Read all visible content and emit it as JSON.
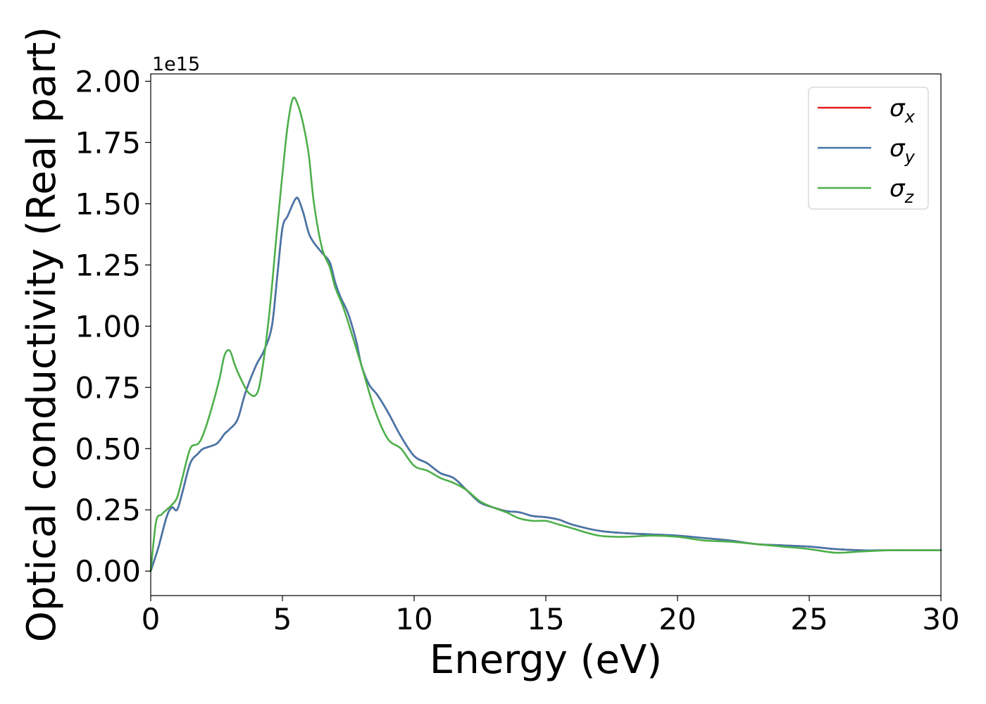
{
  "chart_data": {
    "type": "line",
    "xlabel": "Energy (eV)",
    "ylabel": "Optical conductivity (Real part)",
    "y_offset_text": "1e15",
    "y_scale": 1000000000000000.0,
    "xlim": [
      0,
      30
    ],
    "ylim": [
      -0.1,
      2.03
    ],
    "x_ticks": [
      0,
      5,
      10,
      15,
      20,
      25,
      30
    ],
    "x_tick_labels": [
      "0",
      "5",
      "10",
      "15",
      "20",
      "25",
      "30"
    ],
    "y_ticks": [
      0.0,
      0.25,
      0.5,
      0.75,
      1.0,
      1.25,
      1.5,
      1.75,
      2.0
    ],
    "y_tick_labels": [
      "0.00",
      "0.25",
      "0.50",
      "0.75",
      "1.00",
      "1.25",
      "1.50",
      "1.75",
      "2.00"
    ],
    "grid": false,
    "legend_position": "top-right",
    "series": [
      {
        "name": "σx",
        "symbol": "σ",
        "subscript": "x",
        "color": "#e41a1c",
        "x": [
          0,
          0.3,
          0.6,
          0.8,
          1.0,
          1.2,
          1.5,
          1.8,
          2.0,
          2.5,
          2.8,
          3.0,
          3.3,
          3.6,
          4.0,
          4.3,
          4.6,
          4.8,
          5.0,
          5.2,
          5.4,
          5.5,
          5.6,
          5.8,
          6.0,
          6.2,
          6.5,
          6.8,
          7.0,
          7.2,
          7.5,
          7.8,
          8.0,
          8.3,
          8.6,
          9.0,
          9.5,
          10.0,
          10.5,
          11.0,
          11.5,
          12.0,
          12.5,
          13.0,
          13.5,
          14.0,
          14.5,
          15.0,
          15.5,
          16.0,
          17.0,
          18.0,
          19.0,
          20.0,
          21.0,
          22.0,
          23.0,
          24.0,
          25.0,
          26.0,
          27.0,
          28.0,
          29.0,
          30.0
        ],
        "y": [
          0,
          0.1,
          0.22,
          0.26,
          0.25,
          0.32,
          0.44,
          0.48,
          0.5,
          0.52,
          0.56,
          0.58,
          0.62,
          0.73,
          0.84,
          0.9,
          1.0,
          1.2,
          1.4,
          1.45,
          1.5,
          1.52,
          1.52,
          1.46,
          1.38,
          1.34,
          1.3,
          1.26,
          1.18,
          1.12,
          1.05,
          0.94,
          0.84,
          0.76,
          0.72,
          0.65,
          0.55,
          0.47,
          0.44,
          0.4,
          0.38,
          0.33,
          0.28,
          0.26,
          0.245,
          0.24,
          0.225,
          0.22,
          0.21,
          0.19,
          0.165,
          0.155,
          0.15,
          0.145,
          0.135,
          0.125,
          0.11,
          0.105,
          0.1,
          0.09,
          0.085,
          0.085,
          0.085,
          0.085
        ]
      },
      {
        "name": "σy",
        "symbol": "σ",
        "subscript": "y",
        "color": "#4477aa",
        "x": [
          0,
          0.3,
          0.6,
          0.8,
          1.0,
          1.2,
          1.5,
          1.8,
          2.0,
          2.5,
          2.8,
          3.0,
          3.3,
          3.6,
          4.0,
          4.3,
          4.6,
          4.8,
          5.0,
          5.2,
          5.4,
          5.5,
          5.6,
          5.8,
          6.0,
          6.2,
          6.5,
          6.8,
          7.0,
          7.2,
          7.5,
          7.8,
          8.0,
          8.3,
          8.6,
          9.0,
          9.5,
          10.0,
          10.5,
          11.0,
          11.5,
          12.0,
          12.5,
          13.0,
          13.5,
          14.0,
          14.5,
          15.0,
          15.5,
          16.0,
          17.0,
          18.0,
          19.0,
          20.0,
          21.0,
          22.0,
          23.0,
          24.0,
          25.0,
          26.0,
          27.0,
          28.0,
          29.0,
          30.0
        ],
        "y": [
          0,
          0.1,
          0.22,
          0.26,
          0.25,
          0.32,
          0.44,
          0.48,
          0.5,
          0.52,
          0.56,
          0.58,
          0.62,
          0.73,
          0.84,
          0.9,
          1.0,
          1.2,
          1.4,
          1.45,
          1.5,
          1.52,
          1.52,
          1.46,
          1.38,
          1.34,
          1.3,
          1.26,
          1.18,
          1.12,
          1.05,
          0.94,
          0.84,
          0.76,
          0.72,
          0.65,
          0.55,
          0.47,
          0.44,
          0.4,
          0.38,
          0.33,
          0.28,
          0.26,
          0.245,
          0.24,
          0.225,
          0.22,
          0.21,
          0.19,
          0.165,
          0.155,
          0.15,
          0.145,
          0.135,
          0.125,
          0.11,
          0.105,
          0.1,
          0.09,
          0.085,
          0.085,
          0.085,
          0.085
        ]
      },
      {
        "name": "σz",
        "symbol": "σ",
        "subscript": "z",
        "color": "#4daf4a",
        "x": [
          0,
          0.2,
          0.4,
          0.6,
          0.8,
          1.0,
          1.2,
          1.5,
          1.8,
          2.0,
          2.3,
          2.6,
          2.8,
          3.0,
          3.2,
          3.4,
          3.7,
          4.0,
          4.2,
          4.5,
          4.8,
          5.0,
          5.2,
          5.4,
          5.6,
          5.8,
          6.0,
          6.2,
          6.5,
          6.8,
          7.0,
          7.3,
          7.6,
          8.0,
          8.5,
          9.0,
          9.5,
          10.0,
          10.5,
          11.0,
          11.5,
          12.0,
          12.5,
          13.0,
          13.5,
          14.0,
          14.5,
          15.0,
          15.5,
          16.0,
          17.0,
          18.0,
          19.0,
          20.0,
          21.0,
          22.0,
          23.0,
          24.0,
          25.0,
          26.0,
          27.0,
          28.0,
          29.0,
          30.0
        ],
        "y": [
          0,
          0.2,
          0.23,
          0.25,
          0.27,
          0.3,
          0.38,
          0.5,
          0.52,
          0.56,
          0.66,
          0.78,
          0.88,
          0.9,
          0.84,
          0.79,
          0.73,
          0.72,
          0.8,
          1.05,
          1.4,
          1.62,
          1.82,
          1.93,
          1.9,
          1.82,
          1.7,
          1.5,
          1.32,
          1.24,
          1.16,
          1.08,
          0.98,
          0.84,
          0.66,
          0.54,
          0.5,
          0.43,
          0.41,
          0.38,
          0.36,
          0.33,
          0.285,
          0.26,
          0.24,
          0.215,
          0.205,
          0.205,
          0.19,
          0.175,
          0.145,
          0.14,
          0.145,
          0.14,
          0.125,
          0.12,
          0.11,
          0.1,
          0.09,
          0.075,
          0.08,
          0.085,
          0.085,
          0.085
        ]
      }
    ]
  }
}
